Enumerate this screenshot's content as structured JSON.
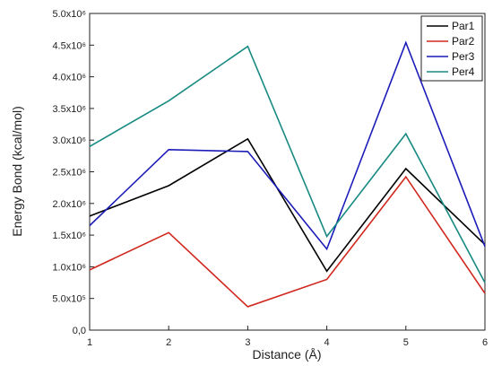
{
  "chart_data": {
    "type": "line",
    "xlabel": "Distance (Å)",
    "ylabel": "Energy Bond (kcal/mol)",
    "x": [
      1,
      2,
      3,
      4,
      5,
      6
    ],
    "xlim": [
      1,
      6
    ],
    "ylim": [
      0,
      5000000
    ],
    "x_ticks": [
      "1",
      "2",
      "3",
      "4",
      "5",
      "6"
    ],
    "y_ticks": [
      {
        "value": 0,
        "label": "0,0"
      },
      {
        "value": 500000,
        "label": "5.0x10⁵"
      },
      {
        "value": 1000000,
        "label": "1.0x10⁶"
      },
      {
        "value": 1500000,
        "label": "1.5x10⁶"
      },
      {
        "value": 2000000,
        "label": "2.0x10⁶"
      },
      {
        "value": 2500000,
        "label": "2.5x10⁶"
      },
      {
        "value": 3000000,
        "label": "3.0x10⁶"
      },
      {
        "value": 3500000,
        "label": "3.5x10⁶"
      },
      {
        "value": 4000000,
        "label": "4.0x10⁶"
      },
      {
        "value": 4500000,
        "label": "4.5x10⁶"
      },
      {
        "value": 5000000,
        "label": "5.0x10⁶"
      }
    ],
    "grid": false,
    "legend_position": "top-right",
    "series": [
      {
        "name": "Par1",
        "color": "#000000",
        "values": [
          1800000,
          2280000,
          3020000,
          930000,
          2550000,
          1350000
        ]
      },
      {
        "name": "Par2",
        "color": "#d0281e",
        "values": [
          950000,
          1540000,
          370000,
          800000,
          2420000,
          580000
        ]
      },
      {
        "name": "Per3",
        "color": "#1c1cb8",
        "values": [
          1650000,
          2850000,
          2820000,
          1280000,
          4540000,
          1320000
        ]
      },
      {
        "name": "Per4",
        "color": "#188a82",
        "values": [
          2900000,
          3620000,
          4480000,
          1480000,
          3100000,
          750000
        ]
      }
    ]
  }
}
